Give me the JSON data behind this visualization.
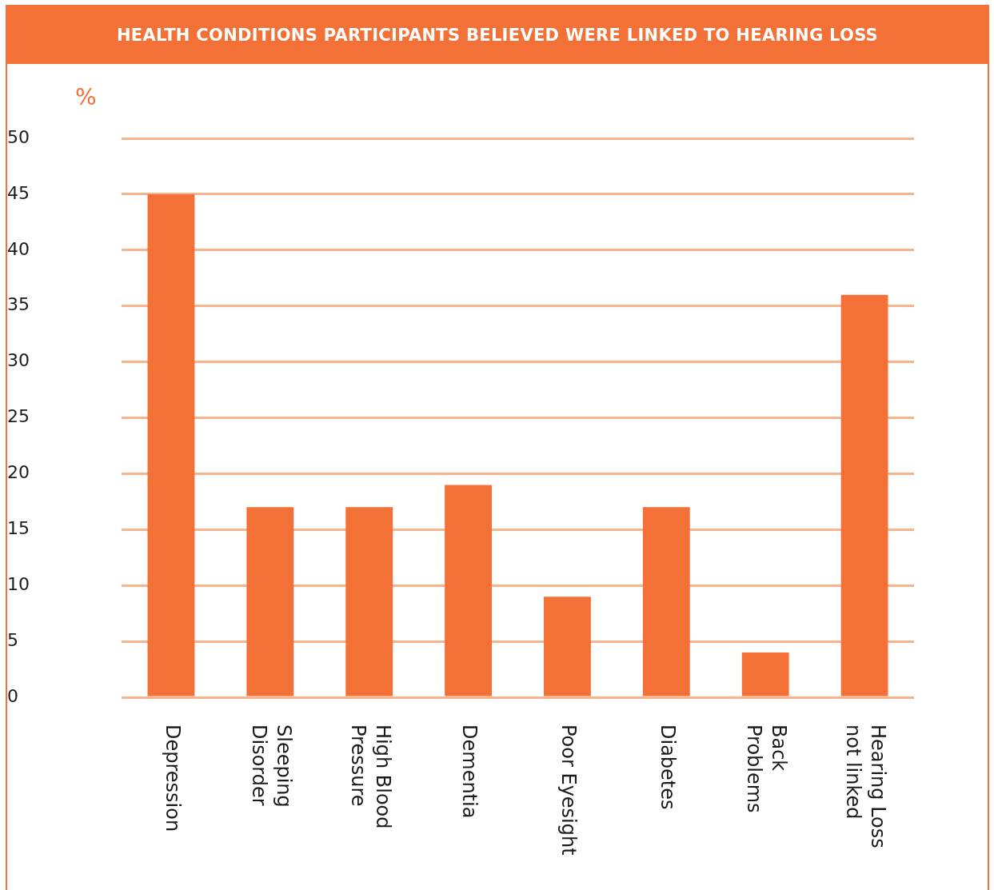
{
  "chart_data": {
    "type": "bar",
    "title": "HEALTH CONDITIONS PARTICIPANTS BELIEVED WERE LINKED TO HEARING LOSS",
    "ylabel": "%",
    "categories": [
      "Depression",
      "Sleeping\nDisorder",
      "High Blood\nPressure",
      "Dementia",
      "Poor Eyesight",
      "Diabetes",
      "Back\nProblems",
      "Hearing Loss\nnot linked"
    ],
    "values": [
      45,
      17,
      17,
      19,
      9,
      17,
      4,
      36
    ],
    "color": "#f37036",
    "ylim": [
      0,
      50
    ],
    "yticks": [
      0,
      5,
      10,
      15,
      20,
      25,
      30,
      35,
      40,
      45,
      50
    ],
    "grid": "y",
    "legend": false
  }
}
